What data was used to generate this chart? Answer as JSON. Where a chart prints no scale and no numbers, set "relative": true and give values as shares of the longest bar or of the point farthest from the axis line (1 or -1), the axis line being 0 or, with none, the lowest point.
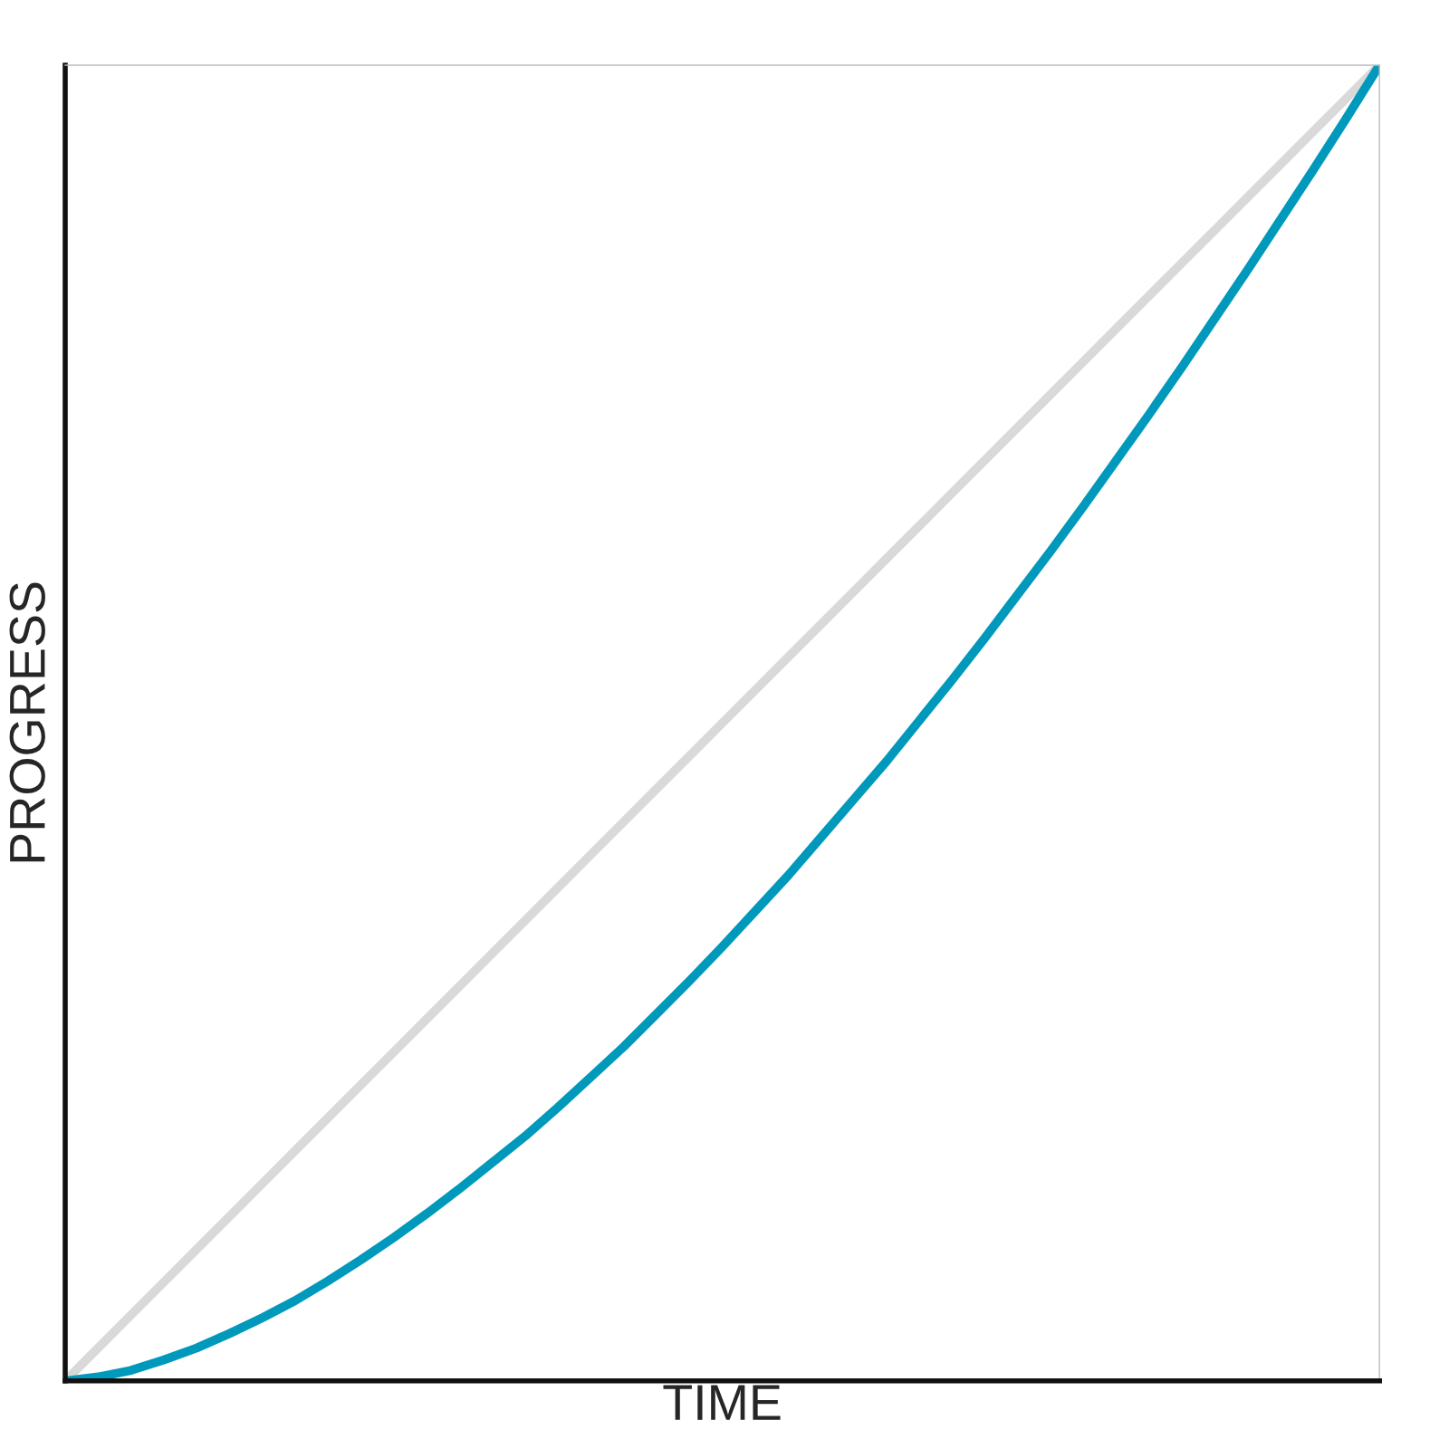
{
  "chart_data": {
    "type": "line",
    "relative": true,
    "xlabel": "TIME",
    "ylabel": "PROGRESS",
    "categories": [
      null,
      null,
      null,
      null,
      null,
      null,
      null,
      null,
      null,
      null,
      null,
      null,
      null,
      null,
      null,
      null,
      null,
      null,
      null,
      null,
      null,
      null,
      null,
      null,
      null,
      null,
      null,
      null,
      null,
      null,
      null,
      null,
      null,
      null,
      null,
      null,
      null,
      null,
      null,
      null,
      null
    ],
    "series": [
      {
        "color": "#d9d9d9",
        "values": [
          0,
          0.025,
          0.05,
          0.075,
          0.1,
          0.125,
          0.15,
          0.175,
          0.2,
          0.225,
          0.25,
          0.275,
          0.3,
          0.325,
          0.35,
          0.375,
          0.4,
          0.425,
          0.45,
          0.475,
          0.5,
          0.525,
          0.55,
          0.575,
          0.6,
          0.625,
          0.65,
          0.675,
          0.7,
          0.725,
          0.75,
          0.775,
          0.8,
          0.825,
          0.85,
          0.875,
          0.9,
          0.925,
          0.95,
          0.975,
          1
        ]
      },
      {
        "color": "#0099bb",
        "values": [
          0,
          0.003,
          0.008,
          0.016,
          0.025,
          0.036,
          0.048,
          0.061,
          0.076,
          0.092,
          0.109,
          0.127,
          0.146,
          0.166,
          0.186,
          0.208,
          0.231,
          0.254,
          0.279,
          0.304,
          0.33,
          0.357,
          0.384,
          0.413,
          0.442,
          0.471,
          0.502,
          0.533,
          0.565,
          0.598,
          0.631,
          0.665,
          0.7,
          0.735,
          0.771,
          0.808,
          0.845,
          0.883,
          0.921,
          0.96,
          1
        ]
      }
    ]
  }
}
